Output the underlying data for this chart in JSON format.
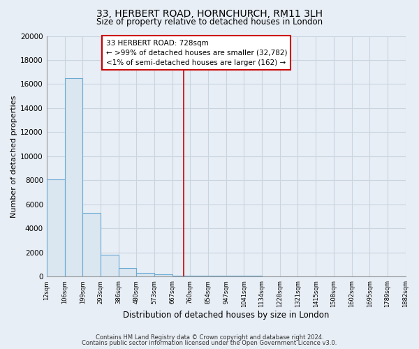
{
  "title": "33, HERBERT ROAD, HORNCHURCH, RM11 3LH",
  "subtitle": "Size of property relative to detached houses in London",
  "bar_heights": [
    8100,
    16500,
    5300,
    1800,
    700,
    300,
    200,
    100,
    100,
    50,
    50,
    50,
    30,
    30,
    20,
    20,
    15,
    10,
    10,
    5
  ],
  "bin_edges": [
    12,
    106,
    199,
    293,
    386,
    480,
    573,
    667,
    760,
    854,
    947,
    1041,
    1134,
    1228,
    1321,
    1415,
    1508,
    1602,
    1695,
    1789,
    1882
  ],
  "bar_color": "#dae6f0",
  "bar_edge_color": "#6aaad4",
  "property_line_x": 728,
  "property_line_color": "#cc0000",
  "xlabel": "Distribution of detached houses by size in London",
  "ylabel": "Number of detached properties",
  "ylim": [
    0,
    20000
  ],
  "yticks": [
    0,
    2000,
    4000,
    6000,
    8000,
    10000,
    12000,
    14000,
    16000,
    18000,
    20000
  ],
  "annotation_title": "33 HERBERT ROAD: 728sqm",
  "annotation_line1": "← >99% of detached houses are smaller (32,782)",
  "annotation_line2": "<1% of semi-detached houses are larger (162) →",
  "annotation_box_color": "#ffffff",
  "annotation_box_edge_color": "#cc0000",
  "footer_line1": "Contains HM Land Registry data © Crown copyright and database right 2024.",
  "footer_line2": "Contains public sector information licensed under the Open Government Licence v3.0.",
  "background_color": "#e8eef5",
  "grid_color": "#c8d4e0",
  "xtick_labels": [
    "12sqm",
    "106sqm",
    "199sqm",
    "293sqm",
    "386sqm",
    "480sqm",
    "573sqm",
    "667sqm",
    "760sqm",
    "854sqm",
    "947sqm",
    "1041sqm",
    "1134sqm",
    "1228sqm",
    "1321sqm",
    "1415sqm",
    "1508sqm",
    "1602sqm",
    "1695sqm",
    "1789sqm",
    "1882sqm"
  ]
}
